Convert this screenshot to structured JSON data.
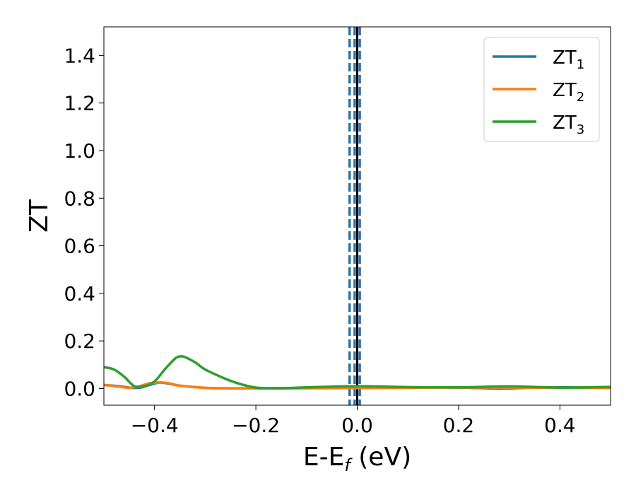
{
  "chart_data": {
    "type": "line",
    "title": "",
    "xlabel": "E-E",
    "xlabel_sub": "f",
    "xlabel_unit": " (eV)",
    "ylabel": "ZT",
    "xlim": [
      -0.5,
      0.5
    ],
    "ylim": [
      -0.07,
      1.52
    ],
    "x_ticks": [
      -0.4,
      -0.2,
      0.0,
      0.2,
      0.4
    ],
    "x_tick_labels": [
      "−0.4",
      "−0.2",
      "0.0",
      "0.2",
      "0.4"
    ],
    "y_ticks": [
      0.0,
      0.2,
      0.4,
      0.6,
      0.8,
      1.0,
      1.2,
      1.4
    ],
    "y_tick_labels": [
      "0.0",
      "0.2",
      "0.4",
      "0.6",
      "0.8",
      "1.0",
      "1.2",
      "1.4"
    ],
    "grid": false,
    "legend_position": "top-right",
    "vlines": [
      {
        "x": 0.0,
        "style": "solid",
        "color": "#000000"
      },
      {
        "x": -0.015,
        "style": "dashed",
        "color": "#1f77b4"
      },
      {
        "x": -0.005,
        "style": "dashed",
        "color": "#1f77b4"
      },
      {
        "x": 0.005,
        "style": "dashed",
        "color": "#1f77b4"
      }
    ],
    "series": [
      {
        "name": "ZT",
        "name_sub": "1",
        "color": "#1f77b4",
        "x": [
          -0.5,
          -0.47,
          -0.45,
          -0.43,
          -0.41,
          -0.39,
          -0.37,
          -0.35,
          -0.3,
          -0.25,
          -0.2,
          -0.1,
          0.0,
          0.1,
          0.2,
          0.28,
          0.35,
          0.42,
          0.5
        ],
        "y": [
          0.015,
          0.01,
          0.004,
          0.003,
          0.015,
          0.025,
          0.02,
          0.012,
          0.003,
          0.001,
          0.001,
          0.002,
          0.004,
          0.005,
          0.004,
          0.0,
          0.004,
          0.005,
          0.003
        ]
      },
      {
        "name": "ZT",
        "name_sub": "2",
        "color": "#ff7f0e",
        "x": [
          -0.5,
          -0.47,
          -0.45,
          -0.43,
          -0.41,
          -0.39,
          -0.37,
          -0.35,
          -0.3,
          -0.25,
          -0.2,
          -0.1,
          0.0,
          0.1,
          0.2,
          0.3,
          0.4,
          0.5
        ],
        "y": [
          0.015,
          0.008,
          0.003,
          0.01,
          0.022,
          0.026,
          0.022,
          0.012,
          0.003,
          0.001,
          0.001,
          0.001,
          0.002,
          0.003,
          0.004,
          0.004,
          0.003,
          0.002
        ]
      },
      {
        "name": "ZT",
        "name_sub": "3",
        "color": "#2ca02c",
        "x": [
          -0.5,
          -0.48,
          -0.46,
          -0.44,
          -0.42,
          -0.4,
          -0.38,
          -0.36,
          -0.35,
          -0.34,
          -0.32,
          -0.3,
          -0.27,
          -0.24,
          -0.2,
          -0.15,
          -0.1,
          0.0,
          0.1,
          0.2,
          0.3,
          0.4,
          0.5
        ],
        "y": [
          0.09,
          0.08,
          0.05,
          0.01,
          0.01,
          0.03,
          0.08,
          0.125,
          0.135,
          0.132,
          0.11,
          0.08,
          0.05,
          0.025,
          0.004,
          0.001,
          0.005,
          0.01,
          0.006,
          0.005,
          0.009,
          0.004,
          0.007
        ]
      }
    ]
  }
}
